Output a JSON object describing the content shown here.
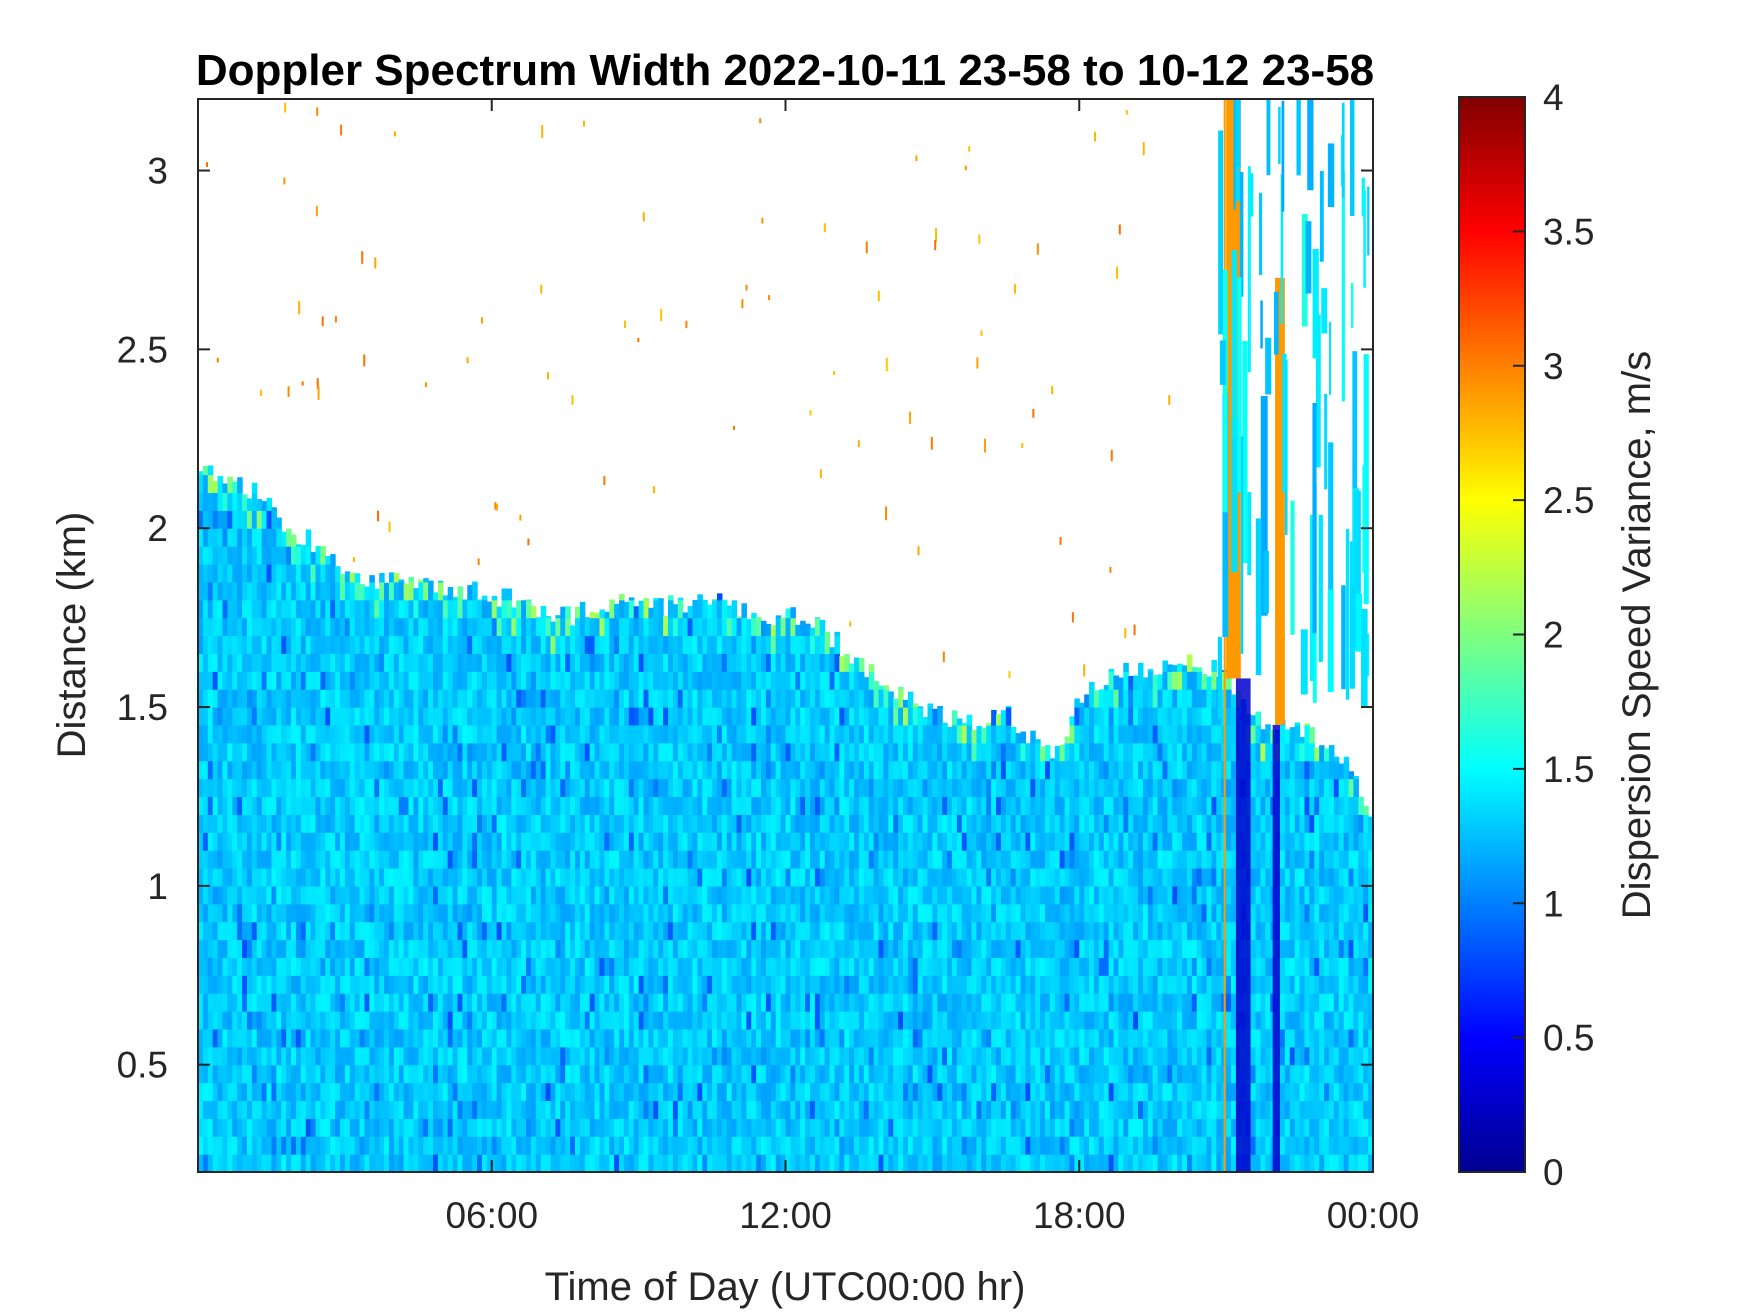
{
  "chart_data": {
    "type": "heatmap",
    "title": "Doppler Spectrum Width 2022-10-11 23-58 to 10-12 23-58",
    "xlabel": "Time of Day (UTC00:00 hr)",
    "ylabel": "Distance (km)",
    "colorbar_label": "Dispersion Speed Variance, m/s",
    "colormap": "jet",
    "xlim_hours": [
      0,
      24
    ],
    "ylim": [
      0.2,
      3.2
    ],
    "clim": [
      0,
      4
    ],
    "x_ticks": [
      {
        "value": 6,
        "label": "06:00"
      },
      {
        "value": 12,
        "label": "12:00"
      },
      {
        "value": 18,
        "label": "18:00"
      },
      {
        "value": 24,
        "label": "00:00"
      }
    ],
    "y_ticks": [
      {
        "value": 0.5,
        "label": "0.5"
      },
      {
        "value": 1,
        "label": "1"
      },
      {
        "value": 1.5,
        "label": "1.5"
      },
      {
        "value": 2,
        "label": "2"
      },
      {
        "value": 2.5,
        "label": "2.5"
      },
      {
        "value": 3,
        "label": "3"
      }
    ],
    "colorbar_ticks": [
      {
        "value": 0,
        "label": "0"
      },
      {
        "value": 0.5,
        "label": "0.5"
      },
      {
        "value": 1,
        "label": "1"
      },
      {
        "value": 1.5,
        "label": "1.5"
      },
      {
        "value": 2,
        "label": "2"
      },
      {
        "value": 2.5,
        "label": "2.5"
      },
      {
        "value": 3,
        "label": "3"
      },
      {
        "value": 3.5,
        "label": "3.5"
      },
      {
        "value": 4,
        "label": "4"
      }
    ],
    "boundary_layer_top_km": {
      "hours": [
        0,
        0.5,
        1.2,
        1.8,
        2.5,
        3.2,
        4.5,
        6.5,
        7.5,
        8.5,
        9.5,
        10.5,
        11.5,
        12.5,
        13.3,
        14.2,
        15.0,
        15.8,
        16.5,
        17.0,
        17.5,
        18.0,
        18.7,
        19.5,
        20.2,
        20.9,
        21.8,
        22.2,
        22.8,
        23.3,
        23.6,
        24.0
      ],
      "values": [
        2.15,
        2.15,
        2.1,
        2.0,
        1.95,
        1.85,
        1.85,
        1.8,
        1.75,
        1.8,
        1.78,
        1.8,
        1.75,
        1.75,
        1.65,
        1.55,
        1.48,
        1.45,
        1.48,
        1.42,
        1.35,
        1.52,
        1.6,
        1.6,
        1.62,
        1.6,
        1.45,
        1.45,
        1.42,
        1.38,
        1.3,
        1.2
      ]
    },
    "typical_value_below_top": 1.3,
    "features": [
      {
        "type": "high_variance_column",
        "hours": [
          21.0,
          21.3
        ],
        "km_range": [
          1.58,
          3.2
        ],
        "value": 2.9
      },
      {
        "type": "high_variance_column",
        "hours": [
          22.0,
          22.2
        ],
        "km_range": [
          1.45,
          2.7
        ],
        "value": 2.9
      },
      {
        "type": "low_variance_column",
        "hours": [
          21.2,
          21.5
        ],
        "km_range": [
          0.2,
          1.58
        ],
        "value": 0.3
      },
      {
        "type": "low_variance_column",
        "hours": [
          21.95,
          22.1
        ],
        "km_range": [
          0.2,
          1.45
        ],
        "value": 0.3
      },
      {
        "type": "thin_orange_line",
        "hours": [
          20.95,
          20.98
        ],
        "km_range": [
          0.2,
          3.2
        ],
        "value": 2.9
      },
      {
        "type": "cloud_patch",
        "hours": [
          20.8,
          23.9
        ],
        "km_range": [
          1.45,
          3.2
        ],
        "value": 1.4
      }
    ]
  }
}
